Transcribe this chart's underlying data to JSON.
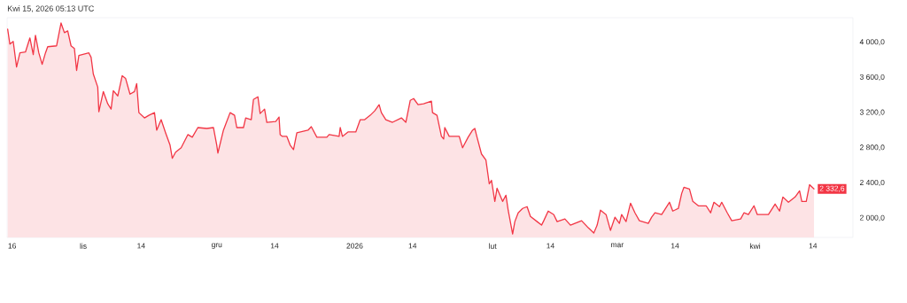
{
  "chart_data": {
    "type": "area",
    "title": "Kwi 15, 2026 05:13 UTC",
    "x": [
      "2025-10-15T00:00",
      "2025-10-15T12:00",
      "2025-10-16T06:00",
      "2025-10-17T00:00",
      "2025-10-17T18:00",
      "2025-10-19T00:00",
      "2025-10-20T00:00",
      "2025-10-20T18:00",
      "2025-10-21T06:00",
      "2025-10-22T00:00",
      "2025-10-22T18:00",
      "2025-10-23T12:00",
      "2025-10-24T00:00",
      "2025-10-26T00:00",
      "2025-10-27T00:00",
      "2025-10-27T18:00",
      "2025-10-28T12:00",
      "2025-10-29T06:00",
      "2025-10-30T00:00",
      "2025-10-30T12:00",
      "2025-10-31T00:00",
      "2025-11-02T06:00",
      "2025-11-02T18:00",
      "2025-11-03T06:00",
      "2025-11-04T06:00",
      "2025-11-04T12:00",
      "2025-11-05T12:00",
      "2025-11-06T12:00",
      "2025-11-07T06:00",
      "2025-11-07T18:00",
      "2025-11-08T18:00",
      "2025-11-09T18:00",
      "2025-11-10T12:00",
      "2025-11-11T12:00",
      "2025-11-12T12:00",
      "2025-11-13T00:00",
      "2025-11-13T12:00",
      "2025-11-14T18:00",
      "2025-11-15T18:00",
      "2025-11-17T00:00",
      "2025-11-17T12:00",
      "2025-11-18T12:00",
      "2025-11-19T12:00",
      "2025-11-20T12:00",
      "2025-11-21T00:00",
      "2025-11-21T18:00",
      "2025-11-23T00:00",
      "2025-11-24T12:00",
      "2025-11-25T12:00",
      "2025-11-26T18:00",
      "2025-11-28T18:00",
      "2025-11-30T06:00",
      "2025-12-01T00:00",
      "2025-12-01T06:00",
      "2025-12-02T12:00",
      "2025-12-04T00:00",
      "2025-12-05T00:00",
      "2025-12-05T12:00",
      "2025-12-07T00:00",
      "2025-12-07T12:00",
      "2025-12-08T18:00",
      "2025-12-09T06:00",
      "2025-12-10T06:00",
      "2025-12-10T18:00",
      "2025-12-11T18:00",
      "2025-12-12T06:00",
      "2025-12-14T06:00",
      "2025-12-15T00:00",
      "2025-12-15T06:00",
      "2025-12-15T18:00",
      "2025-12-16T18:00",
      "2025-12-17T12:00",
      "2025-12-18T06:00",
      "2025-12-19T00:00",
      "2025-12-21T12:00",
      "2025-12-22T06:00",
      "2025-12-23T12:00",
      "2025-12-25T18:00",
      "2025-12-26T06:00",
      "2025-12-28T12:00",
      "2025-12-28T18:00",
      "2025-12-29T06:00",
      "2025-12-30T12:00",
      "2026-01-01T06:00",
      "2026-01-02T06:00",
      "2026-01-03T06:00",
      "2026-01-04T12:00",
      "2026-01-05T12:00",
      "2026-01-06T12:00",
      "2026-01-07T00:00",
      "2026-01-08T00:00",
      "2026-01-09T12:00",
      "2026-01-11T12:00",
      "2026-01-12T12:00",
      "2026-01-13T12:00",
      "2026-01-14T06:00",
      "2026-01-15T06:00",
      "2026-01-16T12:00",
      "2026-01-18T06:00",
      "2026-01-18T12:00",
      "2026-01-19T12:00",
      "2026-01-20T12:00",
      "2026-01-21T00:00",
      "2026-01-21T06:00",
      "2026-01-22T06:00",
      "2026-01-24T12:00",
      "2026-01-25T06:00",
      "2026-01-26T12:00",
      "2026-01-27T12:00",
      "2026-01-28T00:00",
      "2026-01-28T12:00",
      "2026-01-29T12:00",
      "2026-01-30T12:00",
      "2026-01-31T06:00",
      "2026-01-31T18:00",
      "2026-02-01T12:00",
      "2026-02-02T00:00",
      "2026-02-03T06:00",
      "2026-02-04T00:00",
      "2026-02-04T12:00",
      "2026-02-05T12:00",
      "2026-02-06T00:00",
      "2026-02-06T18:00",
      "2026-02-07T18:00",
      "2026-02-08T18:00",
      "2026-02-09T12:00",
      "2026-02-11T00:00",
      "2026-02-12T00:00",
      "2026-02-12T12:00",
      "2026-02-13T12:00",
      "2026-02-14T18:00",
      "2026-02-15T12:00",
      "2026-02-17T06:00",
      "2026-02-18T12:00",
      "2026-02-21T00:00",
      "2026-02-22T12:00",
      "2026-02-23T18:00",
      "2026-02-24T12:00",
      "2026-02-25T06:00",
      "2026-02-26T12:00",
      "2026-02-27T12:00",
      "2026-02-28T12:00",
      "2026-03-01T12:00",
      "2026-03-02T00:00",
      "2026-03-03T00:00",
      "2026-03-04T00:00",
      "2026-03-05T00:00",
      "2026-03-06T00:00",
      "2026-03-08T00:00",
      "2026-03-08T18:00",
      "2026-03-09T12:00",
      "2026-03-11T00:00",
      "2026-03-12T18:00",
      "2026-03-13T12:00",
      "2026-03-14T18:00",
      "2026-03-15T12:00",
      "2026-03-16T00:00",
      "2026-03-17T06:00",
      "2026-03-18T00:00",
      "2026-03-19T06:00",
      "2026-03-21T00:00",
      "2026-03-22T00:00",
      "2026-03-22T18:00",
      "2026-03-24T00:00",
      "2026-03-24T12:00",
      "2026-03-25T18:00",
      "2026-03-26T18:00",
      "2026-03-28T18:00",
      "2026-03-29T12:00",
      "2026-03-30T12:00",
      "2026-03-31T18:00",
      "2026-04-01T12:00",
      "2026-04-04T00:00",
      "2026-04-05T12:00",
      "2026-04-06T12:00",
      "2026-04-07T06:00",
      "2026-04-08T12:00",
      "2026-04-10T00:00",
      "2026-04-11T00:00",
      "2026-04-11T12:00",
      "2026-04-12T12:00",
      "2026-04-13T06:00",
      "2026-04-14T06:00"
    ],
    "values": [
      4150,
      3980,
      4010,
      3720,
      3880,
      3890,
      4050,
      3860,
      4080,
      3880,
      3750,
      3880,
      3950,
      3960,
      4220,
      4110,
      4130,
      3960,
      3930,
      3680,
      3850,
      3880,
      3830,
      3640,
      3490,
      3210,
      3440,
      3300,
      3240,
      3450,
      3390,
      3620,
      3590,
      3410,
      3440,
      3530,
      3200,
      3140,
      3170,
      3200,
      3000,
      3120,
      2970,
      2830,
      2680,
      2750,
      2800,
      2950,
      2920,
      3030,
      3020,
      3030,
      2830,
      2740,
      3000,
      3200,
      3170,
      3030,
      3030,
      3140,
      3120,
      3350,
      3380,
      3190,
      3240,
      3090,
      3100,
      3150,
      2950,
      2930,
      2930,
      2830,
      2780,
      2970,
      3000,
      3040,
      2920,
      2920,
      2950,
      2930,
      3030,
      2930,
      2980,
      2980,
      3120,
      3120,
      3170,
      3220,
      3290,
      3200,
      3120,
      3090,
      3140,
      3090,
      3340,
      3360,
      3290,
      3300,
      3330,
      3200,
      3170,
      2930,
      2900,
      3030,
      2930,
      2930,
      2800,
      2920,
      3000,
      3020,
      2920,
      2730,
      2660,
      2390,
      2430,
      2190,
      2340,
      2190,
      2260,
      2090,
      1820,
      1960,
      2060,
      2110,
      2130,
      2020,
      1960,
      1920,
      1970,
      2080,
      2040,
      1960,
      1990,
      1920,
      1970,
      1890,
      1830,
      1920,
      2090,
      2040,
      1860,
      2010,
      1940,
      2040,
      1960,
      2170,
      2060,
      1970,
      1940,
      2010,
      2060,
      2040,
      2180,
      2080,
      2110,
      2280,
      2350,
      2330,
      2190,
      2140,
      2140,
      2060,
      2180,
      2130,
      2180,
      2060,
      1970,
      1990,
      2060,
      2040,
      2140,
      2040,
      2040,
      2160,
      2080,
      2240,
      2180,
      2240,
      2310,
      2190,
      2190,
      2380,
      2332.6
    ],
    "color": "#f23645",
    "xlim": [
      "2025-10-14T21:00",
      "2026-04-23T00:00"
    ],
    "ylim": [
      1780,
      4280
    ],
    "xticks": [
      {
        "value": "2025-10-16",
        "label": "16"
      },
      {
        "value": "2025-11-01",
        "label": "lis"
      },
      {
        "value": "2025-11-14",
        "label": "14"
      },
      {
        "value": "2025-12-01",
        "label": "gru"
      },
      {
        "value": "2025-12-14",
        "label": "14"
      },
      {
        "value": "2026-01-01",
        "label": "2026"
      },
      {
        "value": "2026-01-14",
        "label": "14"
      },
      {
        "value": "2026-02-01",
        "label": "lut"
      },
      {
        "value": "2026-02-14",
        "label": "14"
      },
      {
        "value": "2026-03-01",
        "label": "mar"
      },
      {
        "value": "2026-03-14",
        "label": "14"
      },
      {
        "value": "2026-04-01",
        "label": "kwi"
      },
      {
        "value": "2026-04-14",
        "label": "14"
      }
    ],
    "yticks": [
      {
        "value": 2000,
        "label": "2 000,0"
      },
      {
        "value": 2400,
        "label": "2 400,0"
      },
      {
        "value": 2800,
        "label": "2 800,0"
      },
      {
        "value": 3200,
        "label": "3 200,0"
      },
      {
        "value": 3600,
        "label": "3 600,0"
      },
      {
        "value": 4000,
        "label": "4 000,0"
      }
    ],
    "annotations": [
      {
        "text": "2 332,6",
        "x": "2026-04-14T06:00",
        "y": 2332.6
      }
    ],
    "grid": false
  }
}
